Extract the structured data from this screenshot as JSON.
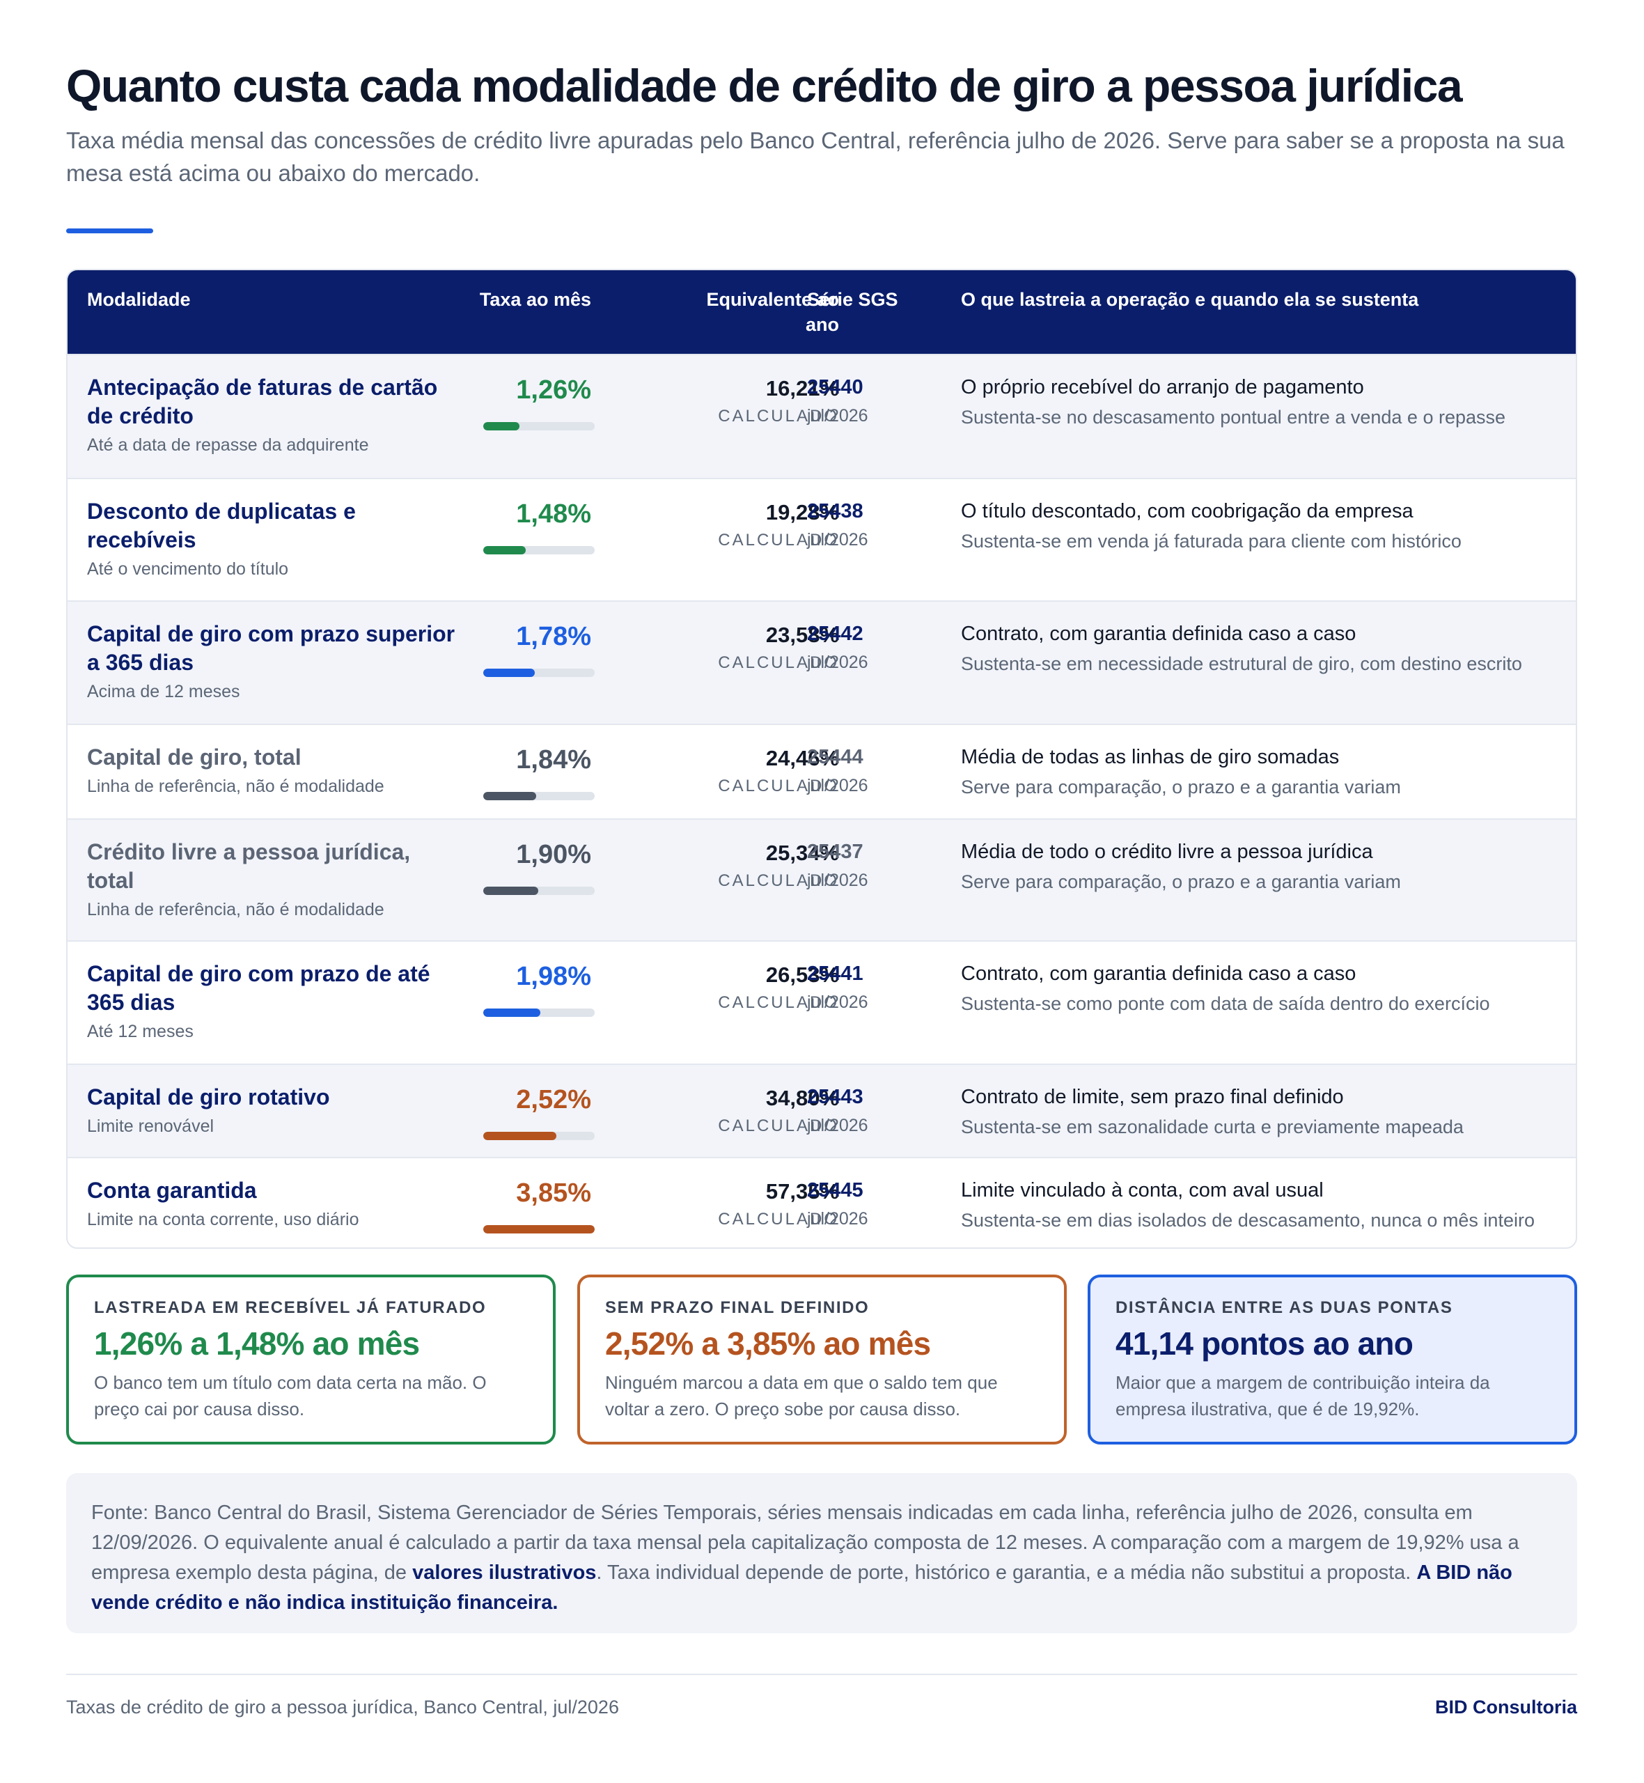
{
  "header": {
    "title": "Quanto custa cada modalidade de crédito de giro a pessoa jurídica",
    "subtitle": "Taxa média mensal das concessões de crédito livre apuradas pelo Banco Central, referência julho de 2026. Serve para saber se a proposta na sua mesa está acima ou abaixo do mercado."
  },
  "table": {
    "columns": {
      "modalidade": "Modalidade",
      "taxa": "Taxa ao mês",
      "equivalente_l1": "Equivalente ao",
      "equivalente_l2": "ano",
      "serie": "Série SGS",
      "lastro": "O que lastreia a operação e quando ela se sustenta"
    },
    "calc_label": "CALCULADO",
    "rows": [
      {
        "name": "Antecipação de faturas de cartão de crédito",
        "sub": "Até a data de repasse da adquirente",
        "rate": "1,26%",
        "rate_value": 1.26,
        "color": "#1f8a4c",
        "annual": "16,21%",
        "sgs": "25440",
        "date": "jul/2026",
        "desc": "O próprio recebível do arranjo de pagamento",
        "desc2": "Sustenta-se no descasamento pontual entre a venda e o repasse"
      },
      {
        "name": "Desconto de duplicatas e recebíveis",
        "sub": "Até o vencimento do título",
        "rate": "1,48%",
        "rate_value": 1.48,
        "color": "#1f8a4c",
        "annual": "19,28%",
        "sgs": "25438",
        "date": "jul/2026",
        "desc": "O título descontado, com coobrigação da empresa",
        "desc2": "Sustenta-se em venda já faturada para cliente com histórico"
      },
      {
        "name": "Capital de giro com prazo superior a 365 dias",
        "sub": "Acima de 12 meses",
        "rate": "1,78%",
        "rate_value": 1.78,
        "color": "#1d5fe0",
        "annual": "23,58%",
        "sgs": "25442",
        "date": "jul/2026",
        "desc": "Contrato, com garantia definida caso a caso",
        "desc2": "Sustenta-se em necessidade estrutural de giro, com destino escrito"
      },
      {
        "name": "Capital de giro, total",
        "sub": "Linha de referência, não é modalidade",
        "rate": "1,84%",
        "rate_value": 1.84,
        "color": "#4b5563",
        "annual": "24,46%",
        "sgs": "25444",
        "date": "jul/2026",
        "desc": "Média de todas as linhas de giro somadas",
        "desc2": "Serve para comparação, o prazo e a garantia variam"
      },
      {
        "name": "Crédito livre a pessoa jurídica, total",
        "sub": "Linha de referência, não é modalidade",
        "rate": "1,90%",
        "rate_value": 1.9,
        "color": "#4b5563",
        "annual": "25,34%",
        "sgs": "25437",
        "date": "jul/2026",
        "desc": "Média de todo o crédito livre a pessoa jurídica",
        "desc2": "Serve para comparação, o prazo e a garantia variam"
      },
      {
        "name": "Capital de giro com prazo de até 365 dias",
        "sub": "Até 12 meses",
        "rate": "1,98%",
        "rate_value": 1.98,
        "color": "#1d5fe0",
        "annual": "26,53%",
        "sgs": "25441",
        "date": "jul/2026",
        "desc": "Contrato, com garantia definida caso a caso",
        "desc2": "Sustenta-se como ponte com data de saída dentro do exercício"
      },
      {
        "name": "Capital de giro rotativo",
        "sub": "Limite renovável",
        "rate": "2,52%",
        "rate_value": 2.52,
        "color": "#b5531f",
        "annual": "34,80%",
        "sgs": "25443",
        "date": "jul/2026",
        "desc": "Contrato de limite, sem prazo final definido",
        "desc2": "Sustenta-se em sazonalidade curta e previamente mapeada"
      },
      {
        "name": "Conta garantida",
        "sub": "Limite na conta corrente, uso diário",
        "rate": "3,85%",
        "rate_value": 3.85,
        "color": "#b5531f",
        "annual": "57,35%",
        "sgs": "25445",
        "date": "jul/2026",
        "desc": "Limite vinculado à conta, com aval usual",
        "desc2": "Sustenta-se em dias isolados de descasamento, nunca o mês inteiro"
      }
    ]
  },
  "cards": [
    {
      "label": "LASTREADA EM RECEBÍVEL JÁ FATURADO",
      "big": "1,26% a 1,48% ao mês",
      "text": "O banco tem um título com data certa na mão. O preço cai por causa disso.",
      "color": "#1f8a4c"
    },
    {
      "label": "SEM PRAZO FINAL DEFINIDO",
      "big": "2,52% a 3,85% ao mês",
      "text": "Ninguém marcou a data em que o saldo tem que voltar a zero. O preço sobe por causa disso.",
      "color": "#b5531f"
    },
    {
      "label": "DISTÂNCIA ENTRE AS DUAS PONTAS",
      "big": "41,14 pontos ao ano",
      "text": "Maior que a margem de contribuição inteira da empresa ilustrativa, que é de 19,92%.",
      "color": "#0b1e6b"
    }
  ],
  "note": {
    "p1": "Fonte: Banco Central do Brasil, Sistema Gerenciador de Séries Temporais, séries mensais indicadas em cada linha, referência julho de 2026, consulta em 12/09/2026. O equivalente anual é calculado a partir da taxa mensal pela capitalização composta de 12 meses. A comparação com a margem de 19,92% usa a empresa exemplo desta página, de ",
    "bold1": "valores ilustrativos",
    "p2": ". Taxa individual depende de porte, histórico e garantia, e a média não substitui a proposta. ",
    "bold2": "A BID não vende crédito e não indica instituição financeira."
  },
  "footer": {
    "left": "Taxas de crédito de giro a pessoa jurídica, Banco Central, jul/2026",
    "right": "BID Consultoria"
  }
}
